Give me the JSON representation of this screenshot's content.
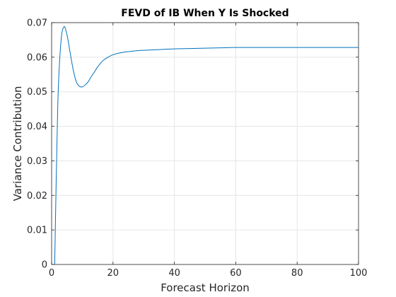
{
  "chart_data": {
    "type": "line",
    "title": "FEVD of IB When Y Is Shocked",
    "xlabel": "Forecast Horizon",
    "ylabel": "Variance Contribution",
    "xlim": [
      0,
      100
    ],
    "ylim": [
      0,
      0.07
    ],
    "xticks": [
      "0",
      "20",
      "40",
      "60",
      "80",
      "100"
    ],
    "yticks": [
      "0",
      "0.01",
      "0.02",
      "0.03",
      "0.04",
      "0.05",
      "0.06",
      "0.07"
    ],
    "grid": true,
    "line_color": "#0072bd",
    "series": [
      {
        "x": [
          1,
          2,
          3,
          4,
          5,
          6,
          7,
          8,
          9,
          10,
          11,
          12,
          13,
          14,
          15,
          16,
          17,
          18,
          19,
          20,
          22,
          24,
          26,
          28,
          30,
          35,
          40,
          45,
          50,
          55,
          60,
          70,
          80,
          90,
          100
        ],
        "y": [
          0.0,
          0.046,
          0.064,
          0.0688,
          0.0665,
          0.0615,
          0.0565,
          0.053,
          0.0516,
          0.0514,
          0.052,
          0.053,
          0.0545,
          0.0558,
          0.0572,
          0.0583,
          0.0592,
          0.0598,
          0.0603,
          0.0607,
          0.0612,
          0.0615,
          0.0617,
          0.0619,
          0.062,
          0.0622,
          0.0624,
          0.0625,
          0.0626,
          0.0627,
          0.0628,
          0.0628,
          0.0628,
          0.0628,
          0.0628
        ]
      }
    ]
  }
}
